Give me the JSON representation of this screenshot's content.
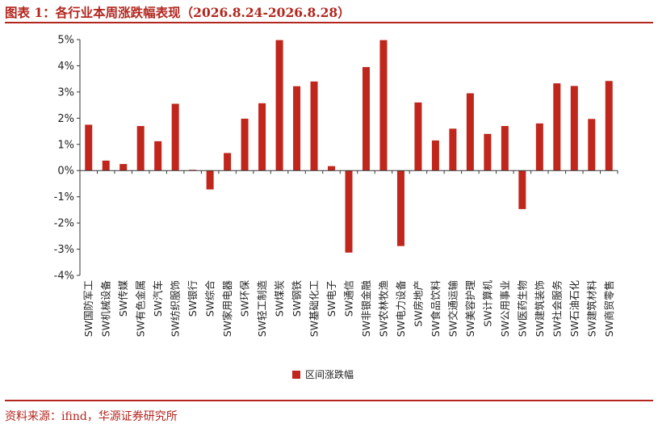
{
  "header": {
    "title": "图表 1：各行业本周涨跌幅表现（2026.8.24-2026.8.28）"
  },
  "footer": {
    "source": "资料来源：ifind，华源证券研究所"
  },
  "colors": {
    "accent": "#b3261e",
    "bar": "#c0261b"
  },
  "chart_data": {
    "type": "bar",
    "title": "",
    "xlabel": "",
    "ylabel": "",
    "ylim": [
      -4,
      5
    ],
    "yticks": [
      5,
      4,
      3,
      2,
      1,
      0,
      -1,
      -2,
      -3,
      -4
    ],
    "ytick_labels": [
      "5%",
      "4%",
      "3%",
      "2%",
      "1%",
      "0%",
      "-1%",
      "-2%",
      "-3%",
      "-4%"
    ],
    "grid": false,
    "legend_position": "bottom-center",
    "categories": [
      "SW国防军工",
      "SW机械设备",
      "SW传媒",
      "SW有色金属",
      "SW汽车",
      "SW纺织服饰",
      "SW银行",
      "SW综合",
      "SW家用电器",
      "SW环保",
      "SW轻工制造",
      "SW煤炭",
      "SW钢铁",
      "SW基础化工",
      "SW电子",
      "SW通信",
      "SW非银金融",
      "SW农林牧渔",
      "SW电力设备",
      "SW房地产",
      "SW食品饮料",
      "SW交通运输",
      "SW美容护理",
      "SW计算机",
      "SW公用事业",
      "SW医药生物",
      "SW建筑装饰",
      "SW社会服务",
      "SW石油石化",
      "SW建筑材料",
      "SW商贸零售"
    ],
    "series": [
      {
        "name": "区间涨跌幅",
        "values": [
          1.75,
          0.38,
          0.25,
          1.7,
          1.12,
          2.55,
          0.03,
          -0.72,
          0.67,
          1.98,
          2.57,
          4.98,
          3.22,
          3.4,
          0.17,
          -3.13,
          3.95,
          4.98,
          -2.88,
          2.6,
          1.15,
          1.6,
          2.95,
          1.4,
          1.7,
          -1.47,
          1.8,
          3.33,
          3.23,
          1.97,
          3.42
        ]
      }
    ]
  }
}
